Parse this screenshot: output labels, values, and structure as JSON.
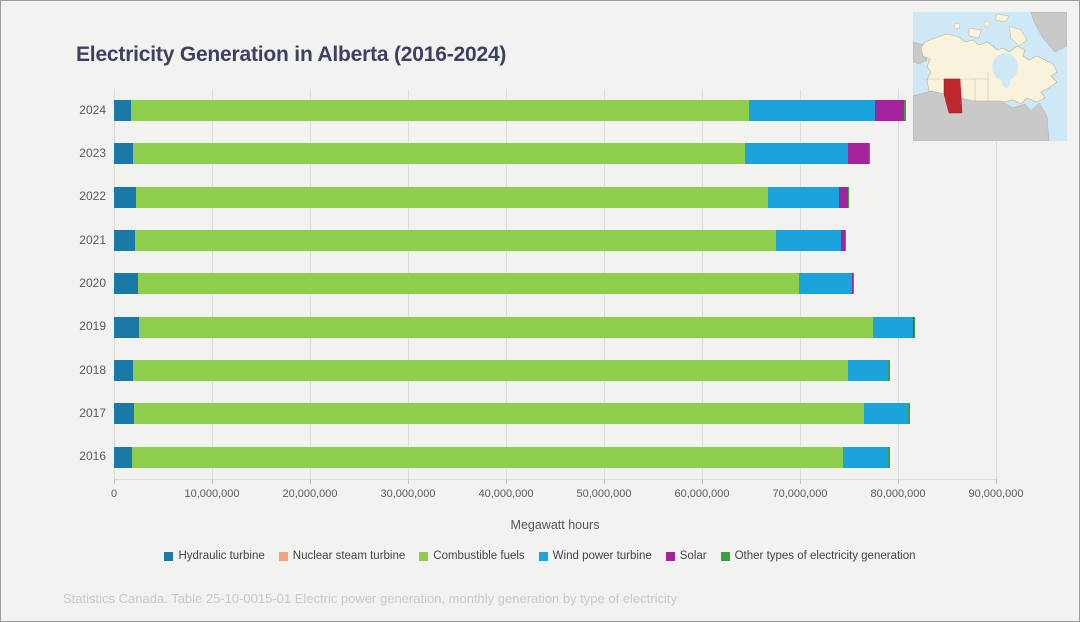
{
  "page": {
    "title": "Electricity Generation in Alberta (2016-2024)",
    "title_color": "#3e4063",
    "background": "#f2f2f0",
    "source_note": "Statistics Canada. Table 25-10-0015-01  Electric power generation, monthly generation by type of electricity"
  },
  "map": {
    "name": "canada-locator-map",
    "highlight_region": "Alberta",
    "highlight_color": "#c0272d",
    "land_color": "#faf3dc",
    "water_color": "#cfe8f6",
    "foreign_land_color": "#c9c9c9"
  },
  "chart_data": {
    "type": "bar",
    "orientation": "horizontal",
    "stacked": true,
    "grid": true,
    "legend_position": "bottom",
    "title": "Electricity Generation in Alberta (2016-2024)",
    "xlabel": "Megawatt hours",
    "ylabel": "",
    "xlim": [
      0,
      90000000
    ],
    "x_ticks": [
      0,
      10000000,
      20000000,
      30000000,
      40000000,
      50000000,
      60000000,
      70000000,
      80000000,
      90000000
    ],
    "x_tick_labels": [
      "0",
      "10,000,000",
      "20,000,000",
      "30,000,000",
      "40,000,000",
      "50,000,000",
      "60,000,000",
      "70,000,000",
      "80,000,000",
      "90,000,000"
    ],
    "categories": [
      "2024",
      "2023",
      "2022",
      "2021",
      "2020",
      "2019",
      "2018",
      "2017",
      "2016"
    ],
    "series": [
      {
        "name": "Hydraulic turbine",
        "color": "#1b79a8",
        "values": [
          1700000,
          1900000,
          2200000,
          2100000,
          2400000,
          2500000,
          1900000,
          2000000,
          1800000
        ]
      },
      {
        "name": "Nuclear steam turbine",
        "color": "#f0a677",
        "values": [
          0,
          0,
          0,
          0,
          0,
          0,
          0,
          0,
          0
        ]
      },
      {
        "name": "Combustible fuels",
        "color": "#8dce4c",
        "values": [
          63100000,
          62500000,
          64500000,
          65500000,
          67500000,
          74900000,
          73000000,
          74500000,
          72600000
        ]
      },
      {
        "name": "Wind power turbine",
        "color": "#1ba3dc",
        "values": [
          12900000,
          10500000,
          7300000,
          6600000,
          5400000,
          4100000,
          4100000,
          4500000,
          4600000
        ]
      },
      {
        "name": "Solar",
        "color": "#a4239d",
        "values": [
          2900000,
          2100000,
          900000,
          400000,
          100000,
          100000,
          0,
          0,
          0
        ]
      },
      {
        "name": "Other types of electricity generation",
        "color": "#3ba13a",
        "values": [
          200000,
          100000,
          100000,
          100000,
          100000,
          100000,
          200000,
          200000,
          200000
        ]
      }
    ]
  }
}
